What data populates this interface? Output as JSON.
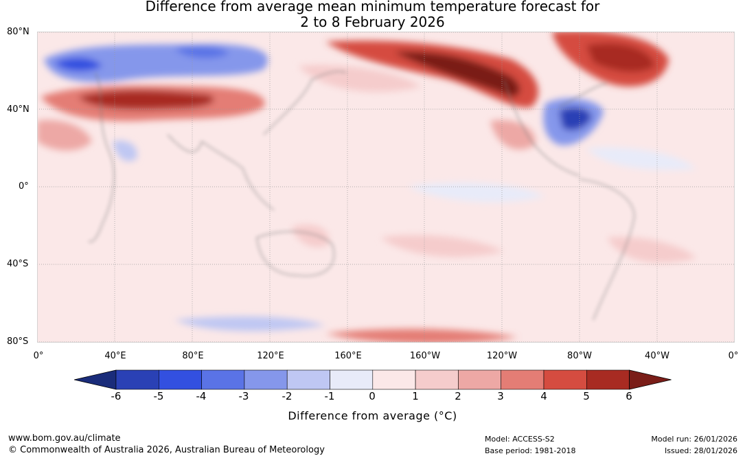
{
  "title": {
    "line1": "Difference from average mean minimum temperature forecast for",
    "line2": "2 to 8 February 2026"
  },
  "map": {
    "lat_labels": [
      "80°N",
      "40°N",
      "0°",
      "40°S",
      "80°S"
    ],
    "lon_labels": [
      "0°",
      "40°E",
      "80°E",
      "120°E",
      "160°E",
      "160°W",
      "120°W",
      "80°W",
      "40°W",
      "0°"
    ],
    "region_notes": [
      "warm-central-asia",
      "warm-alaska-western-canada",
      "warm-greenland-eastern-canada",
      "cold-north-russia",
      "cold-eastern-usa",
      "warm-antarctic-pacific"
    ]
  },
  "colorbar": {
    "ticks": [
      "-6",
      "-5",
      "-4",
      "-3",
      "-2",
      "-1",
      "0",
      "1",
      "2",
      "3",
      "4",
      "5",
      "6"
    ],
    "colors": [
      "#1a2c7a",
      "#2a41b5",
      "#3350e0",
      "#5a73e6",
      "#8597eb",
      "#bfc7f3",
      "#e8ebf9",
      "#fbe8e8",
      "#f5cccc",
      "#eda8a5",
      "#e47d75",
      "#d54c40",
      "#a82b22",
      "#7a1d18"
    ],
    "label": "Difference from average (°C)"
  },
  "footer": {
    "site": "www.bom.gov.au/climate",
    "copyright": "© Commonwealth of Australia 2026, Australian Bureau of Meteorology",
    "model": "Model: ACCESS-S2",
    "base_period": "Base period: 1981-2018",
    "model_run": "Model run: 26/01/2026",
    "issued": "Issued: 28/01/2026"
  }
}
